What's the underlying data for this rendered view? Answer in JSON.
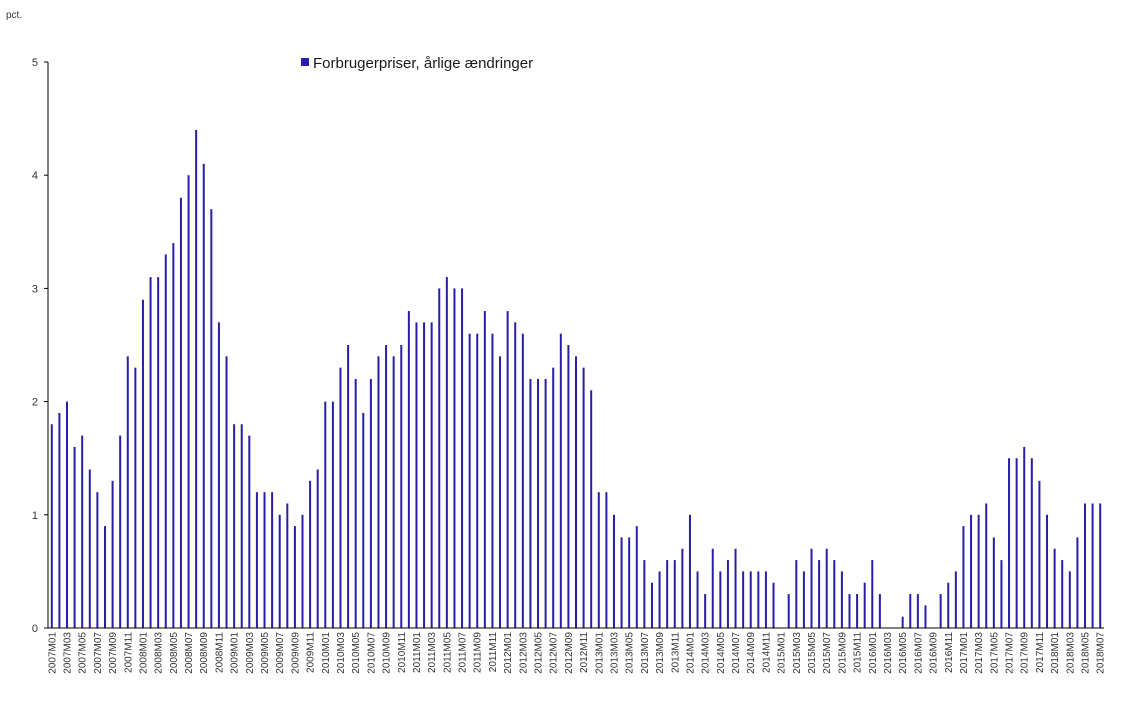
{
  "chart_data": {
    "type": "bar",
    "unit_label": "pct.",
    "legend": [
      "Forbrugerpriser, årlige ændringer"
    ],
    "legend_position": "top-center",
    "ylim": [
      0,
      5
    ],
    "y_ticks": [
      "0",
      "1",
      "2",
      "3",
      "4",
      "5"
    ],
    "grid": false,
    "colors": {
      "bar": "#2a1ea8",
      "axis": "#000000",
      "text": "#333333"
    },
    "x_tick_labels": [
      "2007M01",
      "2007M03",
      "2007M05",
      "2007M07",
      "2007M09",
      "2007M11",
      "2008M01",
      "2008M03",
      "2008M05",
      "2008M07",
      "2008M09",
      "2008M11",
      "2009M01",
      "2009M03",
      "2009M05",
      "2009M07",
      "2009M09",
      "2009M11",
      "2010M01",
      "2010M03",
      "2010M05",
      "2010M07",
      "2010M09",
      "2010M11",
      "2011M01",
      "2011M03",
      "2011M05",
      "2011M07",
      "2011M09",
      "2011M11",
      "2012M01",
      "2012M03",
      "2012M05",
      "2012M07",
      "2012M09",
      "2012M11",
      "2013M01",
      "2013M03",
      "2013M05",
      "2013M07",
      "2013M09",
      "2013M11",
      "2014M01",
      "2014M03",
      "2014M05",
      "2014M07",
      "2014M09",
      "2014M11",
      "2015M01",
      "2015M03",
      "2015M05",
      "2015M07",
      "2015M09",
      "2015M11",
      "2016M01",
      "2016M03",
      "2016M05",
      "2016M07",
      "2016M09",
      "2016M11",
      "2017M01",
      "2017M03",
      "2017M05",
      "2017M07",
      "2017M09",
      "2017M11",
      "2018M01",
      "2018M03",
      "2018M05",
      "2018M07"
    ],
    "categories": [
      "2007M01",
      "2007M02",
      "2007M03",
      "2007M04",
      "2007M05",
      "2007M06",
      "2007M07",
      "2007M08",
      "2007M09",
      "2007M10",
      "2007M11",
      "2007M12",
      "2008M01",
      "2008M02",
      "2008M03",
      "2008M04",
      "2008M05",
      "2008M06",
      "2008M07",
      "2008M08",
      "2008M09",
      "2008M10",
      "2008M11",
      "2008M12",
      "2009M01",
      "2009M02",
      "2009M03",
      "2009M04",
      "2009M05",
      "2009M06",
      "2009M07",
      "2009M08",
      "2009M09",
      "2009M10",
      "2009M11",
      "2009M12",
      "2010M01",
      "2010M02",
      "2010M03",
      "2010M04",
      "2010M05",
      "2010M06",
      "2010M07",
      "2010M08",
      "2010M09",
      "2010M10",
      "2010M11",
      "2010M12",
      "2011M01",
      "2011M02",
      "2011M03",
      "2011M04",
      "2011M05",
      "2011M06",
      "2011M07",
      "2011M08",
      "2011M09",
      "2011M10",
      "2011M11",
      "2011M12",
      "2012M01",
      "2012M02",
      "2012M03",
      "2012M04",
      "2012M05",
      "2012M06",
      "2012M07",
      "2012M08",
      "2012M09",
      "2012M10",
      "2012M11",
      "2012M12",
      "2013M01",
      "2013M02",
      "2013M03",
      "2013M04",
      "2013M05",
      "2013M06",
      "2013M07",
      "2013M08",
      "2013M09",
      "2013M10",
      "2013M11",
      "2013M12",
      "2014M01",
      "2014M02",
      "2014M03",
      "2014M04",
      "2014M05",
      "2014M06",
      "2014M07",
      "2014M08",
      "2014M09",
      "2014M10",
      "2014M11",
      "2014M12",
      "2015M01",
      "2015M02",
      "2015M03",
      "2015M04",
      "2015M05",
      "2015M06",
      "2015M07",
      "2015M08",
      "2015M09",
      "2015M10",
      "2015M11",
      "2015M12",
      "2016M01",
      "2016M02",
      "2016M03",
      "2016M04",
      "2016M05",
      "2016M06",
      "2016M07",
      "2016M08",
      "2016M09",
      "2016M10",
      "2016M11",
      "2016M12",
      "2017M01",
      "2017M02",
      "2017M03",
      "2017M04",
      "2017M05",
      "2017M06",
      "2017M07",
      "2017M08",
      "2017M09",
      "2017M10",
      "2017M11",
      "2017M12",
      "2018M01",
      "2018M02",
      "2018M03",
      "2018M04",
      "2018M05",
      "2018M06",
      "2018M07"
    ],
    "series": [
      {
        "name": "Forbrugerpriser, årlige ændringer",
        "values": [
          1.8,
          1.9,
          2.0,
          1.6,
          1.7,
          1.4,
          1.2,
          0.9,
          1.3,
          1.7,
          2.4,
          2.3,
          2.9,
          3.1,
          3.1,
          3.3,
          3.4,
          3.8,
          4.0,
          4.4,
          4.1,
          3.7,
          2.7,
          2.4,
          1.8,
          1.8,
          1.7,
          1.2,
          1.2,
          1.2,
          1.0,
          1.1,
          0.9,
          1.0,
          1.3,
          1.4,
          2.0,
          2.0,
          2.3,
          2.5,
          2.2,
          1.9,
          2.2,
          2.4,
          2.5,
          2.4,
          2.5,
          2.8,
          2.7,
          2.7,
          2.7,
          3.0,
          3.1,
          3.0,
          3.0,
          2.6,
          2.6,
          2.8,
          2.6,
          2.4,
          2.8,
          2.7,
          2.6,
          2.2,
          2.2,
          2.2,
          2.3,
          2.6,
          2.5,
          2.4,
          2.3,
          2.1,
          1.2,
          1.2,
          1.0,
          0.8,
          0.8,
          0.9,
          0.6,
          0.4,
          0.5,
          0.6,
          0.6,
          0.7,
          1.0,
          0.5,
          0.3,
          0.7,
          0.5,
          0.6,
          0.7,
          0.5,
          0.5,
          0.5,
          0.5,
          0.4,
          0.0,
          0.3,
          0.6,
          0.5,
          0.7,
          0.6,
          0.7,
          0.6,
          0.5,
          0.3,
          0.3,
          0.4,
          0.6,
          0.3,
          0.0,
          0.0,
          0.1,
          0.3,
          0.3,
          0.2,
          0.0,
          0.3,
          0.4,
          0.5,
          0.9,
          1.0,
          1.0,
          1.1,
          0.8,
          0.6,
          1.5,
          1.5,
          1.6,
          1.5,
          1.3,
          1.0,
          0.7,
          0.6,
          0.5,
          0.8,
          1.1,
          1.1,
          1.1
        ]
      }
    ]
  }
}
